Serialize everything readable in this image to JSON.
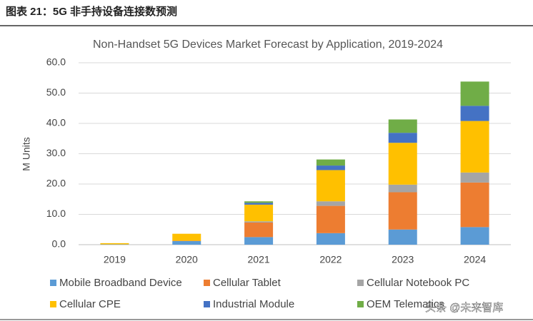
{
  "header": {
    "title": "图表 21：5G 非手持设备连接数预测"
  },
  "watermark": "头条 @未来智库",
  "chart_data": {
    "type": "stacked_bar",
    "title": "Non-Handset 5G Devices Market Forecast by Application, 2019-2024",
    "y_label": "M Units",
    "categories": [
      "2019",
      "2020",
      "2021",
      "2022",
      "2023",
      "2024"
    ],
    "series": [
      {
        "name": "Mobile Broadband Device",
        "color": "#5b9bd5",
        "values": [
          0.1,
          1.2,
          2.5,
          3.8,
          5.0,
          5.8
        ]
      },
      {
        "name": "Cellular Tablet",
        "color": "#ed7d31",
        "values": [
          0,
          0.1,
          4.8,
          9.0,
          12.3,
          14.7
        ]
      },
      {
        "name": "Cellular Notebook PC",
        "color": "#a5a5a5",
        "values": [
          0,
          0,
          0.4,
          1.5,
          2.5,
          3.3
        ]
      },
      {
        "name": "Cellular CPE",
        "color": "#ffc000",
        "values": [
          0.4,
          2.3,
          5.5,
          10.3,
          13.8,
          17.0
        ]
      },
      {
        "name": "Industrial Module",
        "color": "#4472c4",
        "values": [
          0,
          0,
          0.6,
          1.5,
          3.3,
          5.0
        ]
      },
      {
        "name": "OEM Telematics",
        "color": "#70ad47",
        "values": [
          0,
          0,
          0.5,
          2.0,
          4.4,
          8.0
        ]
      }
    ],
    "ylim": [
      0,
      60
    ],
    "yticks": [
      {
        "value": 0,
        "label": "0.0"
      },
      {
        "value": 10,
        "label": "10.0"
      },
      {
        "value": 20,
        "label": "20.0"
      },
      {
        "value": 30,
        "label": "30.0"
      },
      {
        "value": 40,
        "label": "40.0"
      },
      {
        "value": 50,
        "label": "50.0"
      },
      {
        "value": 60,
        "label": "60.0"
      }
    ],
    "grid": true
  }
}
